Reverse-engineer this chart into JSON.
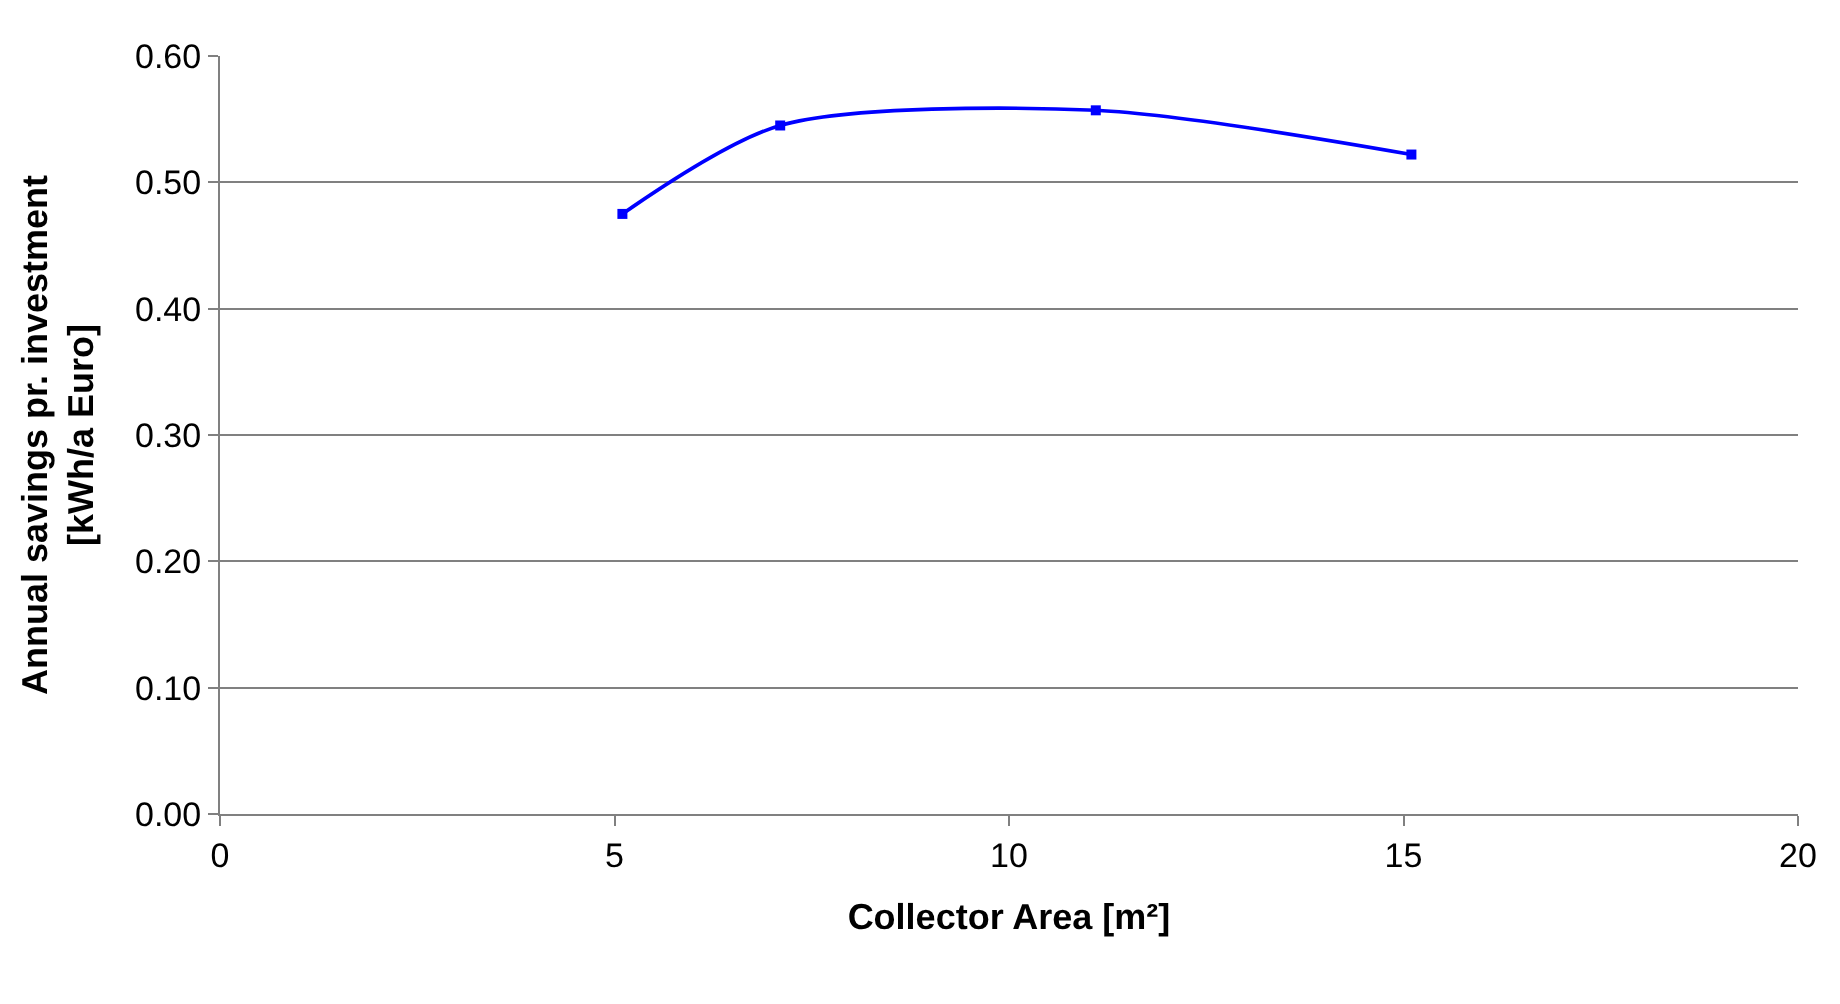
{
  "chart_data": {
    "type": "line",
    "xlabel": "Collector Area [m²]",
    "ylabel": "Annual savings pr. investment\n[kWh/a Euro]",
    "x": [
      5.1,
      7.1,
      11.1,
      15.1
    ],
    "series": [
      {
        "color": "#0000ff",
        "values": [
          0.475,
          0.545,
          0.557,
          0.522
        ]
      }
    ],
    "xlim": [
      0,
      20
    ],
    "xticks": [
      0,
      5,
      10,
      15,
      20
    ],
    "ylim": [
      0,
      0.6
    ],
    "yticks": [
      {
        "value": 0,
        "label": "0.00"
      },
      {
        "value": 0.1,
        "label": "0.10"
      },
      {
        "value": 0.2,
        "label": "0.20"
      },
      {
        "value": 0.3,
        "label": "0.30"
      },
      {
        "value": 0.4,
        "label": "0.40"
      },
      {
        "value": 0.5,
        "label": "0.50"
      },
      {
        "value": 0.6,
        "label": "0.60"
      }
    ],
    "grid": "y",
    "marker": "square",
    "line_style": "solid"
  }
}
